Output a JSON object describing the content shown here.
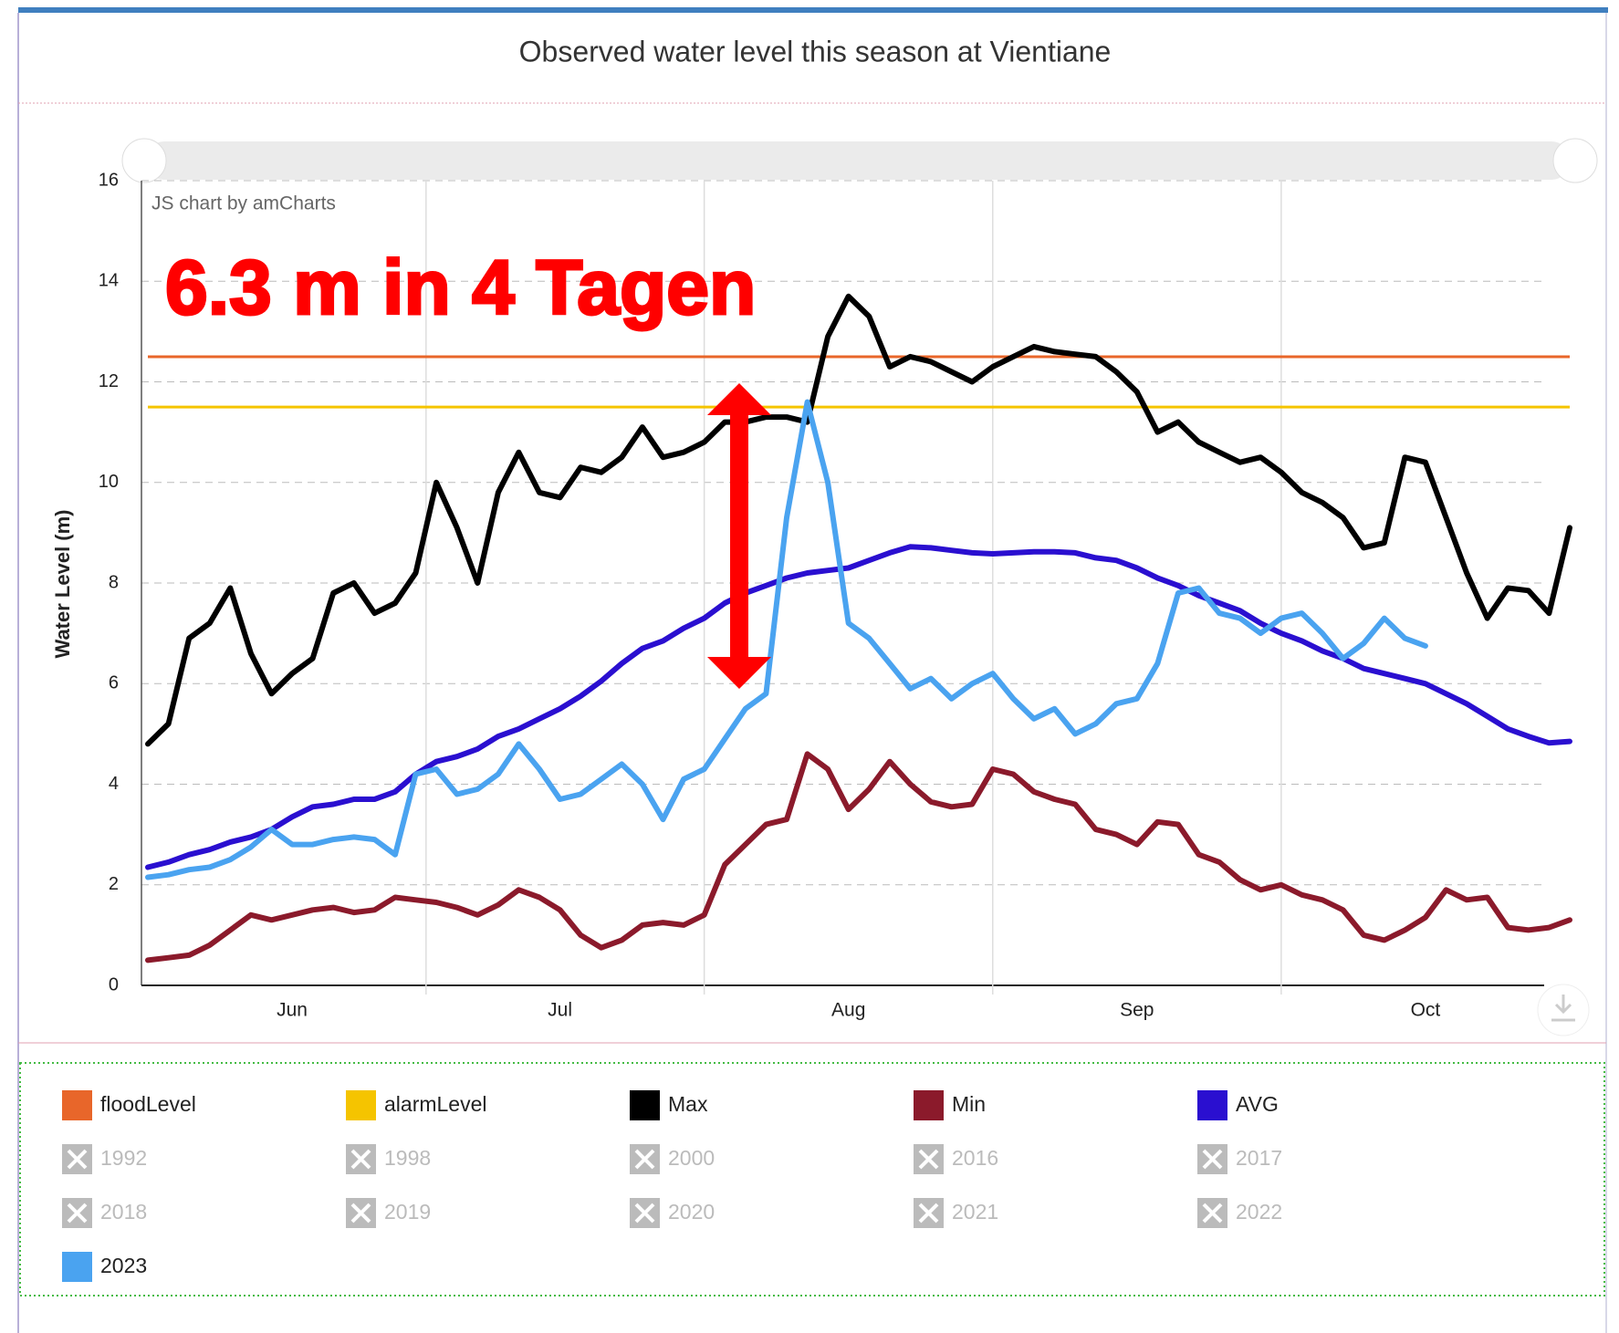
{
  "chart_data": {
    "type": "line",
    "title": "Observed water level this season at Vientiane",
    "credit": "JS chart by amCharts",
    "annotation": "6.3 m in 4 Tagen",
    "ylabel": "Water Level (m)",
    "ylim": [
      0,
      16
    ],
    "yticks": [
      0,
      2,
      4,
      6,
      8,
      10,
      12,
      14,
      16
    ],
    "grid": true,
    "categories": [
      null,
      null,
      null,
      null,
      null,
      null,
      null,
      "Jun",
      null,
      null,
      null,
      null,
      null,
      null,
      null,
      null,
      null,
      null,
      null,
      null,
      "Jul",
      null,
      null,
      null,
      null,
      null,
      null,
      null,
      null,
      null,
      null,
      null,
      null,
      null,
      "Aug",
      null,
      null,
      null,
      null,
      null,
      null,
      null,
      null,
      null,
      null,
      null,
      null,
      null,
      "Sep",
      null,
      null,
      null,
      null,
      null,
      null,
      null,
      null,
      null,
      null,
      null,
      null,
      null,
      "Oct",
      null,
      null,
      null,
      null,
      null,
      null,
      null
    ],
    "series": [
      {
        "name": "floodLevel",
        "color": "#e8662a",
        "level": 12.5
      },
      {
        "name": "alarmLevel",
        "color": "#f5c400",
        "level": 11.5
      },
      {
        "name": "Max",
        "color": "#000000",
        "values": [
          4.8,
          5.2,
          6.9,
          7.2,
          7.9,
          6.6,
          5.8,
          6.2,
          6.5,
          7.8,
          8.0,
          7.4,
          7.6,
          8.2,
          10.0,
          9.1,
          8.0,
          9.8,
          10.6,
          9.8,
          9.7,
          10.3,
          10.2,
          10.5,
          11.1,
          10.5,
          10.6,
          10.8,
          11.2,
          11.2,
          11.3,
          11.3,
          11.2,
          12.9,
          13.7,
          13.3,
          12.3,
          12.5,
          12.4,
          12.2,
          12.0,
          12.3,
          12.5,
          12.7,
          12.6,
          12.55,
          12.5,
          12.2,
          11.8,
          11.0,
          11.2,
          10.8,
          10.6,
          10.4,
          10.5,
          10.2,
          9.8,
          9.6,
          9.3,
          8.7,
          8.8,
          10.5,
          10.4,
          9.3,
          8.2,
          7.3,
          7.9,
          7.85,
          7.4,
          9.1
        ]
      },
      {
        "name": "Min",
        "color": "#8b1a2b",
        "values": [
          0.5,
          0.55,
          0.6,
          0.8,
          1.1,
          1.4,
          1.3,
          1.4,
          1.5,
          1.55,
          1.45,
          1.5,
          1.75,
          1.7,
          1.65,
          1.55,
          1.4,
          1.6,
          1.9,
          1.75,
          1.5,
          1.0,
          0.75,
          0.9,
          1.2,
          1.25,
          1.2,
          1.4,
          2.4,
          2.8,
          3.2,
          3.3,
          4.6,
          4.3,
          3.5,
          3.9,
          4.45,
          4.0,
          3.65,
          3.55,
          3.6,
          4.3,
          4.2,
          3.85,
          3.7,
          3.6,
          3.1,
          3.0,
          2.8,
          3.25,
          3.2,
          2.6,
          2.45,
          2.1,
          1.9,
          2.0,
          1.8,
          1.7,
          1.5,
          1.0,
          0.9,
          1.1,
          1.35,
          1.9,
          1.7,
          1.75,
          1.15,
          1.1,
          1.15,
          1.3
        ]
      },
      {
        "name": "AVG",
        "color": "#2a0fd0",
        "values": [
          2.35,
          2.45,
          2.6,
          2.7,
          2.85,
          2.95,
          3.1,
          3.35,
          3.55,
          3.6,
          3.7,
          3.7,
          3.85,
          4.2,
          4.45,
          4.55,
          4.7,
          4.95,
          5.1,
          5.3,
          5.5,
          5.75,
          6.05,
          6.4,
          6.7,
          6.85,
          7.1,
          7.3,
          7.6,
          7.8,
          7.95,
          8.1,
          8.2,
          8.25,
          8.3,
          8.45,
          8.6,
          8.72,
          8.7,
          8.65,
          8.6,
          8.58,
          8.6,
          8.62,
          8.62,
          8.6,
          8.5,
          8.45,
          8.3,
          8.1,
          7.95,
          7.75,
          7.6,
          7.45,
          7.2,
          7.0,
          6.85,
          6.65,
          6.5,
          6.3,
          6.2,
          6.1,
          6.0,
          5.8,
          5.6,
          5.35,
          5.1,
          4.95,
          4.82,
          4.85
        ]
      },
      {
        "name": "1992",
        "hidden": true
      },
      {
        "name": "1998",
        "hidden": true
      },
      {
        "name": "2000",
        "hidden": true
      },
      {
        "name": "2016",
        "hidden": true
      },
      {
        "name": "2017",
        "hidden": true
      },
      {
        "name": "2018",
        "hidden": true
      },
      {
        "name": "2019",
        "hidden": true
      },
      {
        "name": "2020",
        "hidden": true
      },
      {
        "name": "2021",
        "hidden": true
      },
      {
        "name": "2022",
        "hidden": true
      },
      {
        "name": "2023",
        "color": "#4aa3f0",
        "values": [
          2.15,
          2.2,
          2.3,
          2.35,
          2.5,
          2.75,
          3.1,
          2.8,
          2.8,
          2.9,
          2.95,
          2.9,
          2.6,
          4.2,
          4.3,
          3.8,
          3.9,
          4.2,
          4.8,
          4.3,
          3.7,
          3.8,
          4.1,
          4.4,
          4.0,
          3.3,
          4.1,
          4.3,
          4.9,
          5.5,
          5.8,
          9.3,
          11.6,
          10.0,
          7.2,
          6.9,
          6.4,
          5.9,
          6.1,
          5.7,
          6.0,
          6.2,
          5.7,
          5.3,
          5.5,
          5.0,
          5.2,
          5.6,
          5.7,
          6.4,
          7.8,
          7.9,
          7.4,
          7.3,
          7.0,
          7.3,
          7.4,
          7.0,
          6.5,
          6.8,
          7.3,
          6.9,
          6.75,
          null,
          null,
          null,
          null,
          null,
          null,
          null
        ]
      }
    ]
  }
}
